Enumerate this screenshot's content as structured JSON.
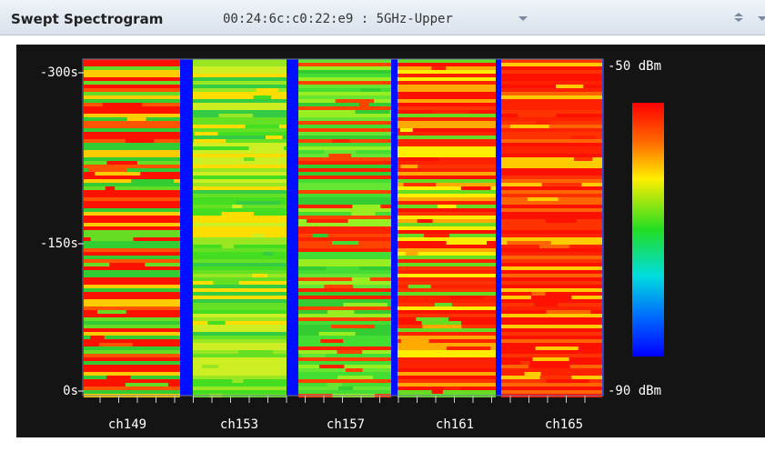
{
  "header": {
    "title": "Swept Spectrogram",
    "selector": "00:24:6c:c0:22:e9 : 5GHz-Upper"
  },
  "spectrogram": {
    "time_labels": [
      "-300s",
      "-150s",
      "0s"
    ],
    "channels": [
      "ch149",
      "ch153",
      "ch157",
      "ch161",
      "ch165"
    ],
    "scale_labels": [
      "-50 dBm",
      "-90 dBm"
    ]
  }
}
